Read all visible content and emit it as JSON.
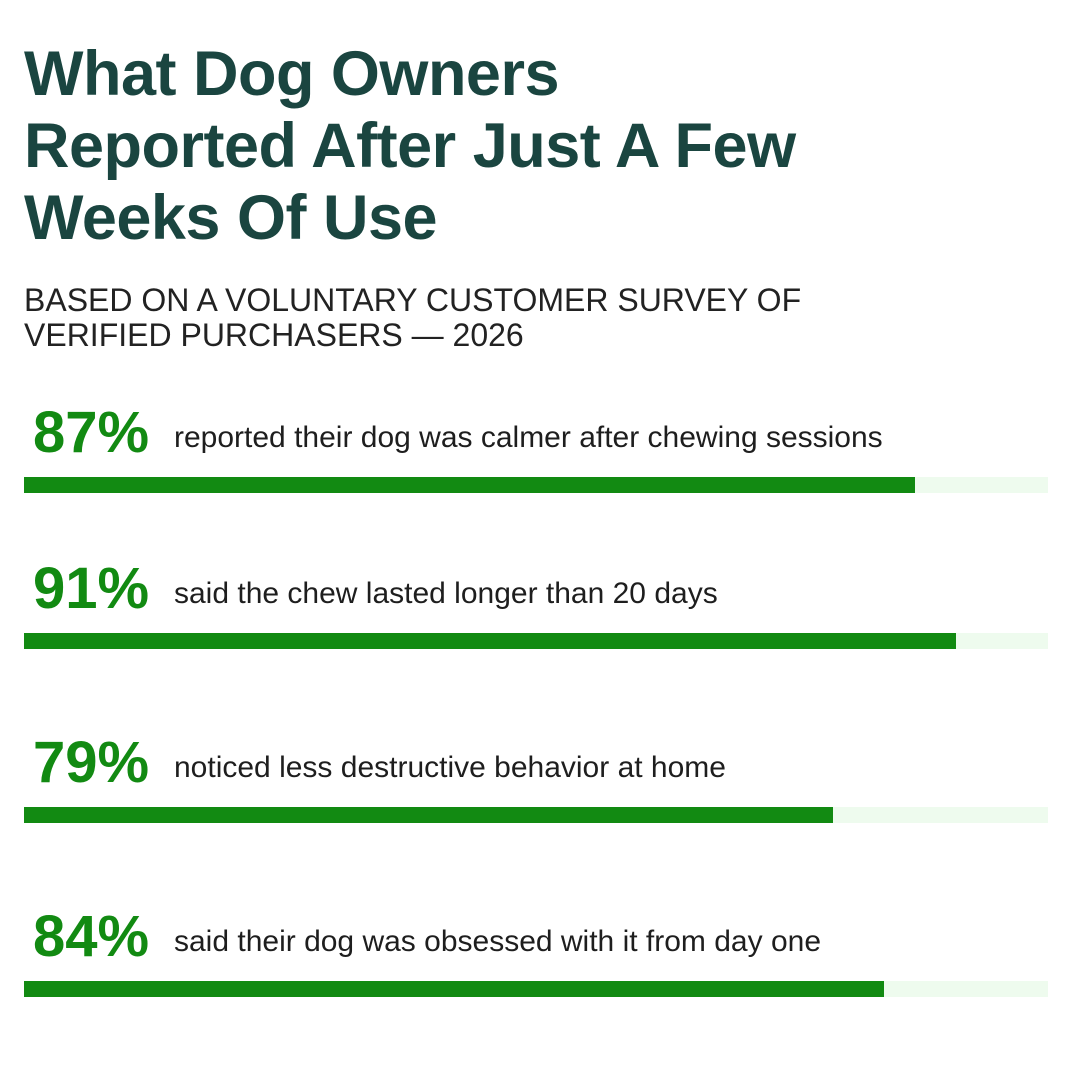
{
  "chart_data": {
    "type": "bar",
    "title": "What Dog Owners Reported After Just A Few Weeks Of Use",
    "subtitle": "BASED ON A VOLUNTARY CUSTOMER SURVEY OF VERIFIED PURCHASERS — 2026",
    "categories": [
      "reported their dog was calmer after chewing sessions",
      "said the chew lasted longer than 20 days",
      "noticed less destructive behavior at home",
      "said their dog was obsessed with it from day one"
    ],
    "values": [
      87,
      91,
      79,
      84
    ],
    "value_labels": [
      "87%",
      "91%",
      "79%",
      "84%"
    ],
    "xlim": [
      0,
      100
    ],
    "color": "#128a12",
    "track_color": "#eefbee"
  }
}
